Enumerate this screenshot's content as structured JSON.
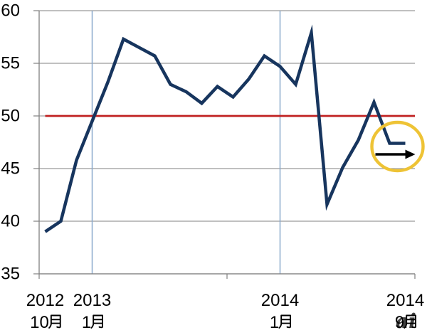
{
  "chart_data": {
    "type": "line",
    "title": "",
    "xlabel": "",
    "ylabel": "",
    "x_categories": [
      "2012-10",
      "2012-11",
      "2012-12",
      "2013-01",
      "2013-02",
      "2013-03",
      "2013-04",
      "2013-05",
      "2013-06",
      "2013-07",
      "2013-08",
      "2013-09",
      "2013-10",
      "2013-11",
      "2013-12",
      "2014-01",
      "2014-02",
      "2014-03",
      "2014-04",
      "2014-05",
      "2014-06",
      "2014-07",
      "2014-08",
      "2014-09"
    ],
    "values": [
      39.0,
      40.0,
      45.8,
      49.5,
      53.2,
      57.3,
      56.5,
      55.7,
      53.0,
      52.3,
      51.2,
      52.8,
      51.8,
      53.5,
      55.7,
      54.7,
      53.0,
      57.9,
      41.6,
      45.1,
      47.7,
      51.3,
      47.4,
      47.4
    ],
    "ylim": [
      35,
      60
    ],
    "y_ticks": [
      60,
      55,
      50,
      45,
      40,
      35
    ],
    "x_axis_labels": [
      {
        "index": 0,
        "year": "2012",
        "month": "10月"
      },
      {
        "index": 3,
        "year": "2013",
        "month": "1月"
      },
      {
        "index": 15,
        "year": "2014",
        "month": "1月"
      },
      {
        "index": 23,
        "year": "2014",
        "month": "9月"
      }
    ],
    "reference_line": {
      "value": 50
    },
    "event_line_indices": [
      3,
      15
    ],
    "annotation": {
      "circled_point_indices": [
        22,
        23
      ],
      "arrow_direction": "right"
    },
    "grid": true,
    "legend": "none",
    "colors": {
      "series": "#17355E",
      "reference_line": "#C02020",
      "event_line": "#8AA9CC",
      "gridline": "#9A9A9A",
      "axis": "#808080",
      "highlight_circle": "#EEC335",
      "arrow": "#000000",
      "label": "#000000",
      "watermark": "#6F6F6F"
    }
  },
  "watermark": "ai"
}
